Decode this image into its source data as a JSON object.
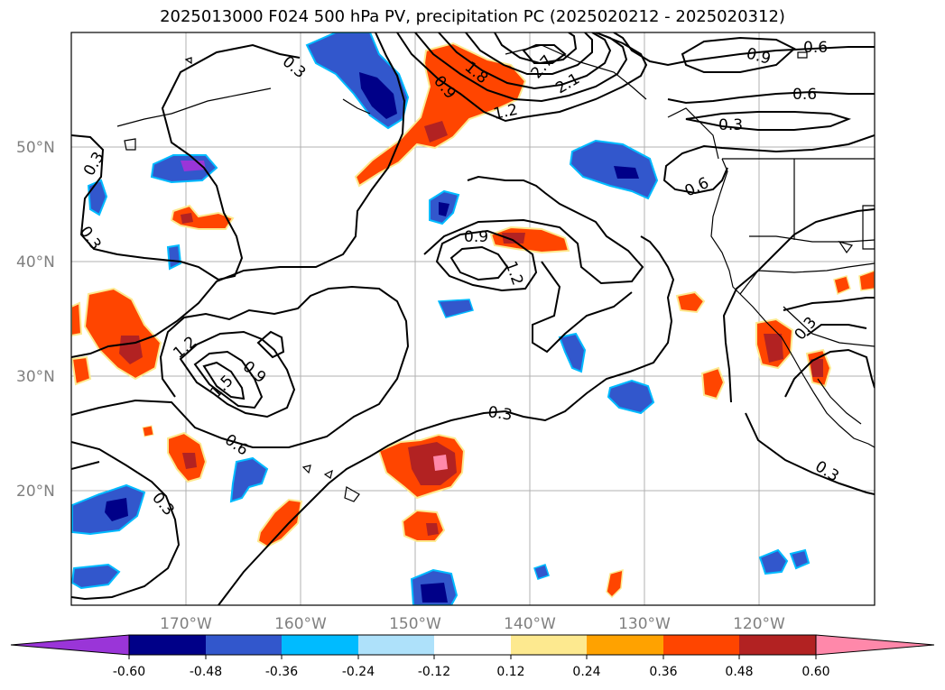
{
  "title": "2025013000 F024 500 hPa PV, precipitation PC (2025020212 - 2025020312)",
  "map": {
    "lat_ticks": [
      "50°N",
      "40°N",
      "30°N",
      "20°N"
    ],
    "lon_ticks": [
      "170°W",
      "160°W",
      "150°W",
      "140°W",
      "130°W",
      "120°W"
    ],
    "extent": {
      "lon_min": -180,
      "lon_max": -110,
      "lat_min": 10,
      "lat_max": 60
    },
    "gridlines": true
  },
  "colorbar": {
    "levels": [
      "-0.60",
      "-0.48",
      "-0.36",
      "-0.24",
      "-0.12",
      "0.12",
      "0.24",
      "0.36",
      "0.48",
      "0.60"
    ],
    "colors": [
      "#9a35d8",
      "#000088",
      "#3257cc",
      "#00bbff",
      "#aee1fa",
      "#ffffff",
      "#fde98f",
      "#ffa200",
      "#ff4500",
      "#b22222",
      "#ff88aa"
    ]
  },
  "contour_labels": [
    "0.3",
    "0.3",
    "0.3",
    "0.3",
    "0.3",
    "0.3",
    "0.3",
    "0.3",
    "0.6",
    "0.6",
    "0.6",
    "0.6",
    "0.9",
    "0.9",
    "0.9",
    "0.9",
    "1.2",
    "1.2",
    "1.2",
    "1.5",
    "1.8",
    "2.1",
    "2.7"
  ]
}
